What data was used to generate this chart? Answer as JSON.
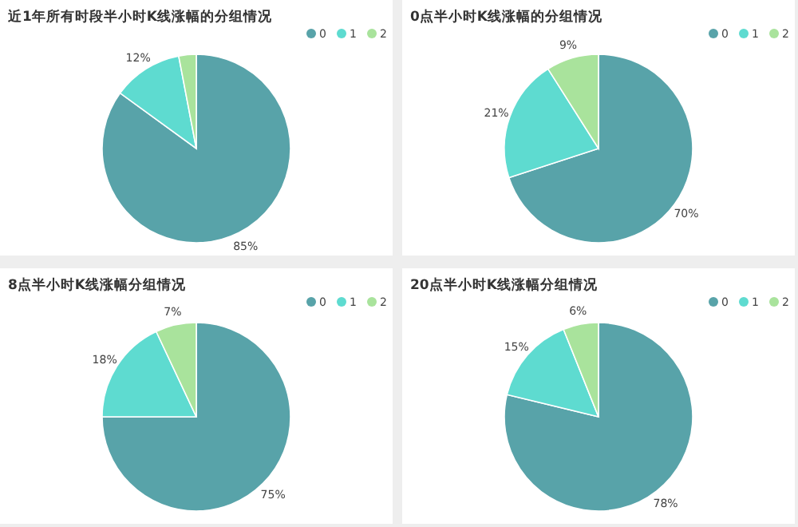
{
  "chart_data": [
    {
      "type": "pie",
      "title": "近1年所有时段半小时K线涨幅的分组情况",
      "categories": [
        "0",
        "1",
        "2"
      ],
      "values": [
        85,
        12,
        3
      ],
      "value_labels": [
        "85%",
        "12%",
        null
      ],
      "colors": [
        "#58a3a9",
        "#5edbd0",
        "#a9e39c"
      ],
      "legend": "top right"
    },
    {
      "type": "pie",
      "title": "0点半小时K线涨幅的分组情况",
      "categories": [
        "0",
        "1",
        "2"
      ],
      "values": [
        70,
        21,
        9
      ],
      "value_labels": [
        "70%",
        "21%",
        "9%"
      ],
      "colors": [
        "#58a3a9",
        "#5edbd0",
        "#a9e39c"
      ],
      "legend": "top right"
    },
    {
      "type": "pie",
      "title": "8点半小时K线涨幅分组情况",
      "categories": [
        "0",
        "1",
        "2"
      ],
      "values": [
        75,
        18,
        7
      ],
      "value_labels": [
        "75%",
        "18%",
        "7%"
      ],
      "colors": [
        "#58a3a9",
        "#5edbd0",
        "#a9e39c"
      ],
      "legend": "top right"
    },
    {
      "type": "pie",
      "title": "20点半小时K线涨幅分组情况",
      "categories": [
        "0",
        "1",
        "2"
      ],
      "values": [
        78,
        15,
        6
      ],
      "value_labels": [
        "78%",
        "15%",
        "6%"
      ],
      "colors": [
        "#58a3a9",
        "#5edbd0",
        "#a9e39c"
      ],
      "legend": "top right"
    }
  ]
}
